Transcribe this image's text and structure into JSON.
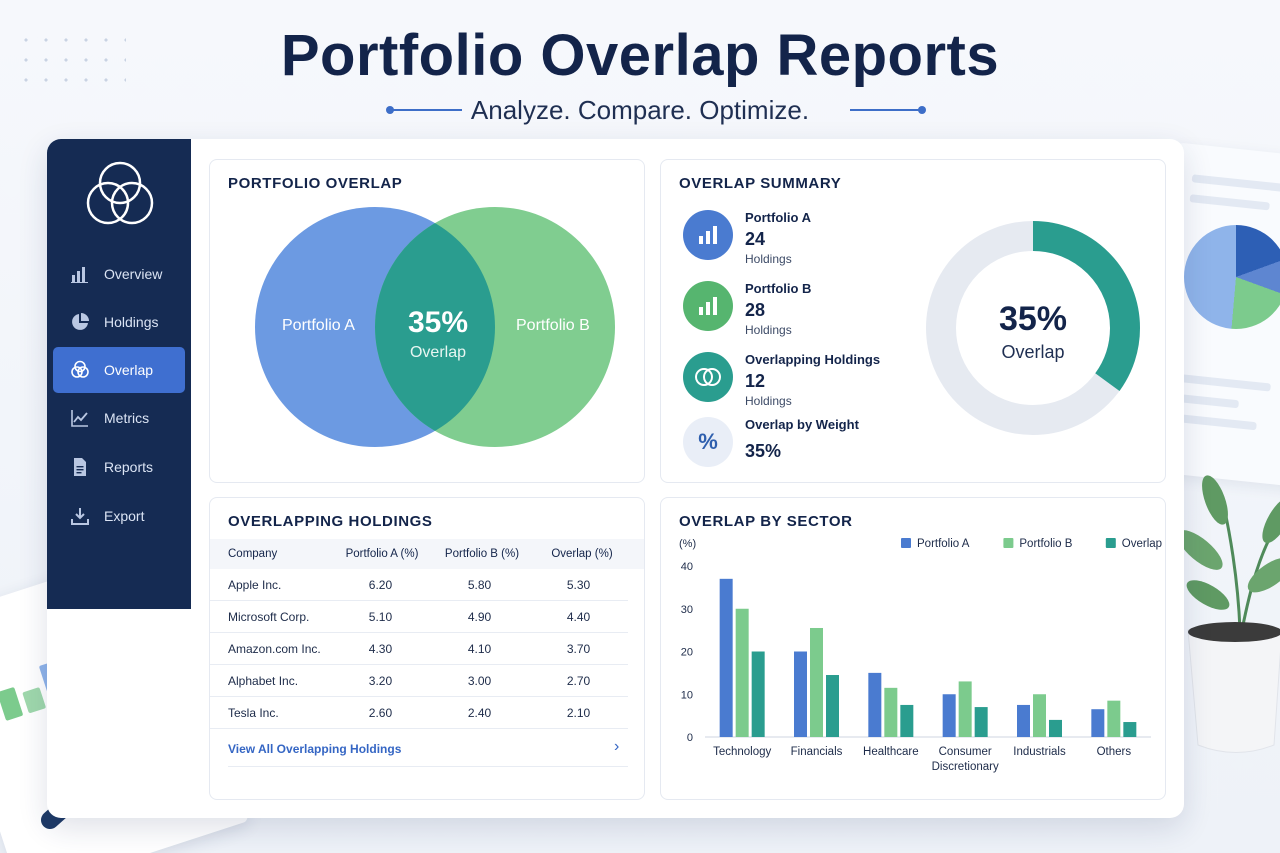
{
  "hero": {
    "title": "Portfolio Overlap Reports",
    "subtitle": "Analyze. Compare. Optimize."
  },
  "sidebar": {
    "items": [
      {
        "label": "Overview",
        "icon": "bar-chart-icon"
      },
      {
        "label": "Holdings",
        "icon": "pie-chart-icon"
      },
      {
        "label": "Overlap",
        "icon": "venn-icon",
        "active": true
      },
      {
        "label": "Metrics",
        "icon": "line-chart-icon"
      },
      {
        "label": "Reports",
        "icon": "document-icon"
      },
      {
        "label": "Export",
        "icon": "download-icon"
      }
    ]
  },
  "overlap_panel": {
    "title": "PORTFOLIO OVERLAP",
    "left_label": "Portfolio A",
    "right_label": "Portfolio B",
    "percent": "35%",
    "percent_label": "Overlap"
  },
  "summary_panel": {
    "title": "OVERLAP SUMMARY",
    "items": [
      {
        "label": "Portfolio A",
        "value": "24",
        "unit": "Holdings",
        "icon": "bar-chart-icon"
      },
      {
        "label": "Portfolio B",
        "value": "28",
        "unit": "Holdings",
        "icon": "bar-chart-icon"
      },
      {
        "label": "Overlapping Holdings",
        "value": "12",
        "unit": "Holdings",
        "icon": "venn-icon"
      },
      {
        "label": "Overlap by Weight",
        "value": "35%",
        "icon": "percent-icon"
      }
    ],
    "donut_percent": "35%",
    "donut_label": "Overlap",
    "donut_fraction": 0.35
  },
  "holdings_panel": {
    "title": "OVERLAPPING HOLDINGS",
    "columns": [
      "Company",
      "Portfolio A (%)",
      "Portfolio B (%)",
      "Overlap (%)"
    ],
    "rows": [
      [
        "Apple Inc.",
        "6.20",
        "5.80",
        "5.30"
      ],
      [
        "Microsoft Corp.",
        "5.10",
        "4.90",
        "4.40"
      ],
      [
        "Amazon.com Inc.",
        "4.30",
        "4.10",
        "3.70"
      ],
      [
        "Alphabet Inc.",
        "3.20",
        "3.00",
        "2.70"
      ],
      [
        "Tesla Inc.",
        "2.60",
        "2.40",
        "2.10"
      ]
    ],
    "view_all": "View All Overlapping Holdings"
  },
  "sector_panel": {
    "title": "OVERLAP BY SECTOR"
  },
  "colors": {
    "portfolio_a": "#4a7bd0",
    "portfolio_b": "#7ccb8d",
    "overlap": "#2a9d8f",
    "sidebar": "#152b53",
    "active": "#3f6fd0"
  },
  "chart_data": {
    "type": "bar",
    "ylabel": "(%)",
    "ylim": [
      0,
      40
    ],
    "yticks": [
      0,
      10,
      20,
      30,
      40
    ],
    "legend_position": "top-right",
    "grid": false,
    "categories": [
      "Technology",
      "Financials",
      "Healthcare",
      "Consumer Discretionary",
      "Industrials",
      "Others"
    ],
    "category_lines": [
      [
        "Technology"
      ],
      [
        "Financials"
      ],
      [
        "Healthcare"
      ],
      [
        "Consumer",
        "Discretionary"
      ],
      [
        "Industrials"
      ],
      [
        "Others"
      ]
    ],
    "series": [
      {
        "name": "Portfolio A",
        "color": "#4a7bd0",
        "values": [
          37,
          20,
          15,
          10,
          7.5,
          6.5
        ]
      },
      {
        "name": "Portfolio B",
        "color": "#7ccb8d",
        "values": [
          30,
          25.5,
          11.5,
          13,
          10,
          8.5
        ]
      },
      {
        "name": "Overlap",
        "color": "#2a9d8f",
        "values": [
          20,
          14.5,
          7.5,
          7,
          4,
          3.5
        ]
      }
    ]
  }
}
